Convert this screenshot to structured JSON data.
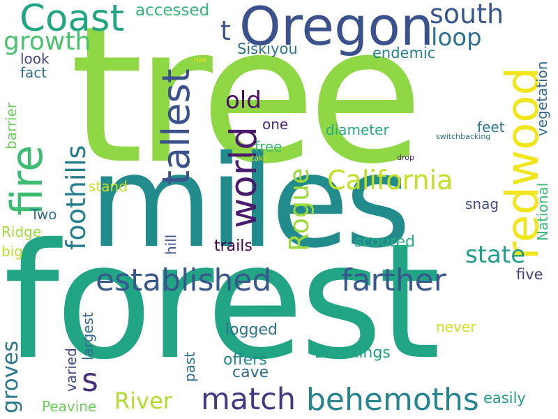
{
  "words": [
    {
      "text": "tree",
      "color": "#8fd744"
    },
    {
      "text": "forest",
      "color": "#21a585"
    },
    {
      "text": "miles",
      "color": "#228c8d"
    },
    {
      "text": "Oregon",
      "color": "#3b518b"
    },
    {
      "text": "redwood",
      "color": "#f1e51d"
    },
    {
      "text": "Coast",
      "color": "#21a585"
    },
    {
      "text": "fire",
      "color": "#3dbc74"
    },
    {
      "text": "tallest",
      "color": "#3b518b"
    },
    {
      "text": "world",
      "color": "#481b6d"
    },
    {
      "text": "established",
      "color": "#38588c"
    },
    {
      "text": "farther",
      "color": "#38588c"
    },
    {
      "text": "behemoths",
      "color": "#25848e"
    },
    {
      "text": "match",
      "color": "#453882"
    },
    {
      "text": "foothills",
      "color": "#277f8e"
    },
    {
      "text": "California",
      "color": "#c2df23"
    },
    {
      "text": "s",
      "color": "#46307e"
    },
    {
      "text": "t",
      "color": "#3b528b"
    },
    {
      "text": "south",
      "color": "#39568c"
    },
    {
      "text": "growth",
      "color": "#4ac16d"
    },
    {
      "text": "loop",
      "color": "#2e6e8e"
    },
    {
      "text": "Rogue",
      "color": "#9dd93b"
    },
    {
      "text": "state",
      "color": "#1f9e89"
    },
    {
      "text": "River",
      "color": "#b0dd2f"
    },
    {
      "text": "groves",
      "color": "#2a788e"
    },
    {
      "text": "old",
      "color": "#471063"
    },
    {
      "text": "accessed",
      "color": "#35b779"
    },
    {
      "text": "Siskiyou",
      "color": "#2c718e"
    },
    {
      "text": "endemic",
      "color": "#26828e"
    },
    {
      "text": "vegetation",
      "color": "#31688e"
    },
    {
      "text": "National",
      "color": "#3aba76"
    },
    {
      "text": "diameter",
      "color": "#25ab82"
    },
    {
      "text": "feet",
      "color": "#2a788e"
    },
    {
      "text": "one",
      "color": "#482878"
    },
    {
      "text": "free",
      "color": "#3cbb75"
    },
    {
      "text": "trails",
      "color": "#440154"
    },
    {
      "text": "scoured",
      "color": "#29af7f"
    },
    {
      "text": "snag",
      "color": "#3e4a89"
    },
    {
      "text": "five",
      "color": "#433e85"
    },
    {
      "text": "Brookings",
      "color": "#1fa187"
    },
    {
      "text": "logged",
      "color": "#2c728e"
    },
    {
      "text": "offers",
      "color": "#23888e"
    },
    {
      "text": "cave",
      "color": "#2f6c8e"
    },
    {
      "text": "never",
      "color": "#d2e21b"
    },
    {
      "text": "easily",
      "color": "#1e9c89"
    },
    {
      "text": "Peavine",
      "color": "#6ccd5a"
    },
    {
      "text": "stand",
      "color": "#c8e020"
    },
    {
      "text": "Two",
      "color": "#2c718e"
    },
    {
      "text": "Ridge",
      "color": "#a2da37"
    },
    {
      "text": "big",
      "color": "#bade28"
    },
    {
      "text": "look",
      "color": "#3f4788"
    },
    {
      "text": "fact",
      "color": "#2e6f8e"
    },
    {
      "text": "barrier",
      "color": "#6ccd5a"
    },
    {
      "text": "hill",
      "color": "#3b528b"
    },
    {
      "text": "largest",
      "color": "#31688e"
    },
    {
      "text": "varied",
      "color": "#3e4989"
    },
    {
      "text": "past",
      "color": "#2d708e"
    },
    {
      "text": "rise",
      "color": "#f1e51d"
    },
    {
      "text": "take",
      "color": "#d5e21a"
    },
    {
      "text": "drop",
      "color": "#482677"
    },
    {
      "text": "switchbacking",
      "color": "#2c728e"
    }
  ]
}
